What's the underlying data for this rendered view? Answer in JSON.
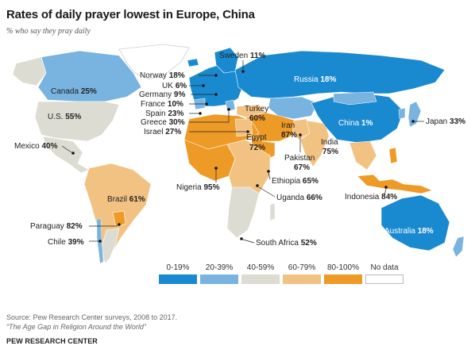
{
  "title": "Rates of daily prayer lowest in Europe, China",
  "subtitle": "% who say they pray daily",
  "colors": {
    "c0_19": "#1a8ad0",
    "c20_39": "#79b3e0",
    "c40_59": "#dcdcd2",
    "c60_79": "#f2c282",
    "c80_100": "#ee9a26",
    "nodata": "#ffffff"
  },
  "legend": [
    {
      "label": "0-19%",
      "color": "#1a8ad0"
    },
    {
      "label": "20-39%",
      "color": "#79b3e0"
    },
    {
      "label": "40-59%",
      "color": "#dcdcd2"
    },
    {
      "label": "60-79%",
      "color": "#f2c282"
    },
    {
      "label": "80-100%",
      "color": "#ee9a26"
    },
    {
      "label": "No data",
      "color": "#ffffff"
    }
  ],
  "countries": {
    "sweden": {
      "name": "Sweden",
      "value": "11%"
    },
    "norway": {
      "name": "Norway",
      "value": "18%"
    },
    "uk": {
      "name": "UK",
      "value": "6%"
    },
    "germany": {
      "name": "Germany",
      "value": "9%"
    },
    "france": {
      "name": "France",
      "value": "10%"
    },
    "spain": {
      "name": "Spain",
      "value": "23%"
    },
    "greece": {
      "name": "Greece",
      "value": "30%"
    },
    "israel": {
      "name": "Israel",
      "value": "27%"
    },
    "russia": {
      "name": "Russia",
      "value": "18%"
    },
    "turkey": {
      "name": "Turkey",
      "value": "60%"
    },
    "iran": {
      "name": "Iran",
      "value": "87%"
    },
    "egypt": {
      "name": "Egypt",
      "value": "72%"
    },
    "india": {
      "name": "India",
      "value": "75%"
    },
    "pakistan": {
      "name": "Pakistan",
      "value": "67%"
    },
    "china": {
      "name": "China",
      "value": "1%"
    },
    "japan": {
      "name": "Japan",
      "value": "33%"
    },
    "canada": {
      "name": "Canada",
      "value": "25%"
    },
    "us": {
      "name": "U.S.",
      "value": "55%"
    },
    "mexico": {
      "name": "Mexico",
      "value": "40%"
    },
    "brazil": {
      "name": "Brazil",
      "value": "61%"
    },
    "paraguay": {
      "name": "Paraguay",
      "value": "82%"
    },
    "chile": {
      "name": "Chile",
      "value": "39%"
    },
    "nigeria": {
      "name": "Nigeria",
      "value": "95%"
    },
    "ethiopia": {
      "name": "Ethiopia",
      "value": "65%"
    },
    "uganda": {
      "name": "Uganda",
      "value": "66%"
    },
    "southafrica": {
      "name": "South Africa",
      "value": "52%"
    },
    "indonesia": {
      "name": "Indonesia",
      "value": "84%"
    },
    "australia": {
      "name": "Australia",
      "value": "18%"
    }
  },
  "source": {
    "line1": "Source: Pew Research Center surveys, 2008 to 2017.",
    "line2": "“The Age Gap in Religion Around the World”"
  },
  "brand": "PEW RESEARCH CENTER"
}
